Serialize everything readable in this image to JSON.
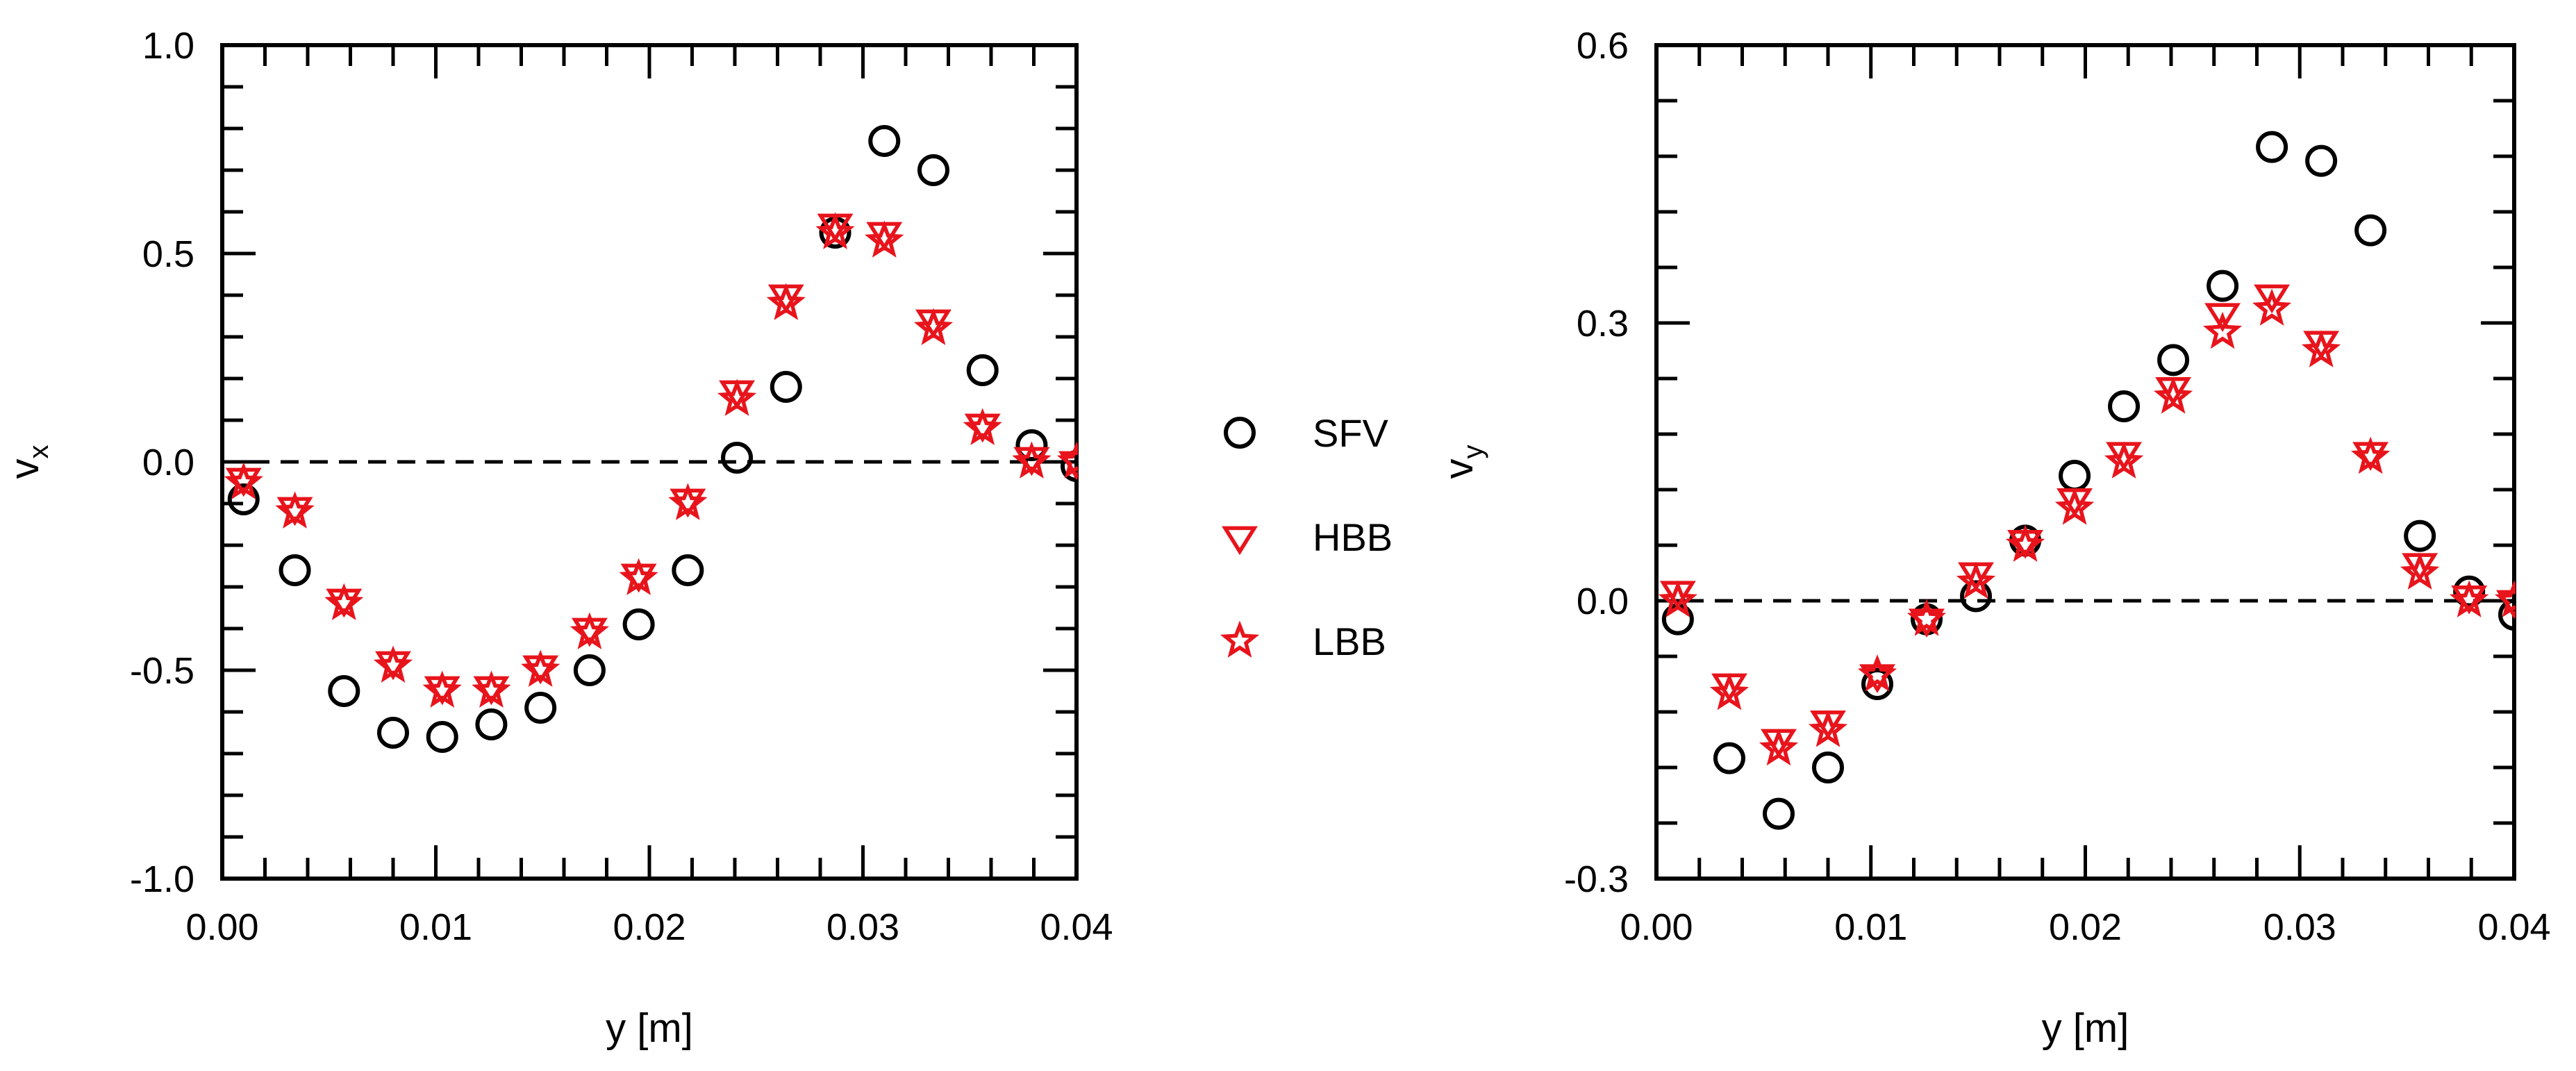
{
  "colors": {
    "sfv": "#000000",
    "hbb": "#e8141c",
    "lbb": "#e8141c",
    "axis": "#000000"
  },
  "legend": [
    {
      "key": "sfv",
      "label": "SFV",
      "marker": "circle"
    },
    {
      "key": "hbb",
      "label": "HBB",
      "marker": "triangle-down"
    },
    {
      "key": "lbb",
      "label": "LBB",
      "marker": "star"
    }
  ],
  "chart_data": [
    {
      "type": "scatter",
      "title": "",
      "xlabel": "y [m]",
      "ylabel_main": "v",
      "ylabel_sub": "x",
      "xlim": [
        0,
        0.04
      ],
      "ylim": [
        -1.0,
        1.0
      ],
      "xticks": [
        0.0,
        0.01,
        0.02,
        0.03,
        0.04
      ],
      "xtick_labels": [
        "0.00",
        "0.01",
        "0.02",
        "0.03",
        "0.04"
      ],
      "yticks": [
        -1.0,
        -0.5,
        0.0,
        0.5,
        1.0
      ],
      "ytick_labels": [
        "-1.0",
        "-0.5",
        "0.0",
        "0.5",
        "1.0"
      ],
      "zero_line": true,
      "x": [
        0.001,
        0.0034,
        0.0057,
        0.008,
        0.0103,
        0.0126,
        0.0149,
        0.0172,
        0.0195,
        0.0218,
        0.0241,
        0.0264,
        0.0287,
        0.031,
        0.0333,
        0.0356,
        0.0379,
        0.04
      ],
      "series": [
        {
          "name": "SFV",
          "values": [
            -0.09,
            -0.26,
            -0.55,
            -0.65,
            -0.66,
            -0.63,
            -0.59,
            -0.5,
            -0.39,
            -0.26,
            0.01,
            0.18,
            0.55,
            0.77,
            0.7,
            0.22,
            0.04,
            -0.01
          ]
        },
        {
          "name": "HBB",
          "values": [
            -0.04,
            -0.11,
            -0.33,
            -0.48,
            -0.54,
            -0.54,
            -0.49,
            -0.4,
            -0.27,
            -0.09,
            0.17,
            0.4,
            0.57,
            0.55,
            0.34,
            0.09,
            0.01,
            0.0
          ]
        },
        {
          "name": "LBB",
          "values": [
            -0.05,
            -0.12,
            -0.34,
            -0.49,
            -0.55,
            -0.55,
            -0.5,
            -0.41,
            -0.28,
            -0.1,
            0.15,
            0.38,
            0.55,
            0.53,
            0.32,
            0.08,
            0.0,
            0.0
          ]
        }
      ]
    },
    {
      "type": "scatter",
      "title": "",
      "xlabel": "y [m]",
      "ylabel_main": "v",
      "ylabel_sub": "y",
      "xlim": [
        0,
        0.04
      ],
      "ylim": [
        -0.3,
        0.6
      ],
      "xticks": [
        0.0,
        0.01,
        0.02,
        0.03,
        0.04
      ],
      "xtick_labels": [
        "0.00",
        "0.01",
        "0.02",
        "0.03",
        "0.04"
      ],
      "yticks": [
        -0.3,
        0.0,
        0.3,
        0.6
      ],
      "ytick_labels": [
        "-0.3",
        "0.0",
        "0.3",
        "0.6"
      ],
      "zero_line": true,
      "x": [
        0.001,
        0.0034,
        0.0057,
        0.008,
        0.0103,
        0.0126,
        0.0149,
        0.0172,
        0.0195,
        0.0218,
        0.0241,
        0.0264,
        0.0287,
        0.031,
        0.0333,
        0.0356,
        0.0379,
        0.04
      ],
      "series": [
        {
          "name": "SFV",
          "values": [
            -0.02,
            -0.17,
            -0.23,
            -0.18,
            -0.09,
            -0.02,
            0.005,
            0.065,
            0.135,
            0.21,
            0.26,
            0.34,
            0.49,
            0.475,
            0.4,
            0.07,
            0.01,
            -0.015
          ]
        },
        {
          "name": "HBB",
          "values": [
            0.01,
            -0.09,
            -0.15,
            -0.13,
            -0.08,
            -0.02,
            0.03,
            0.065,
            0.11,
            0.16,
            0.23,
            0.31,
            0.33,
            0.28,
            0.16,
            0.04,
            0.005,
            0.0
          ]
        },
        {
          "name": "LBB",
          "values": [
            0.0,
            -0.1,
            -0.16,
            -0.14,
            -0.08,
            -0.02,
            0.02,
            0.06,
            0.1,
            0.15,
            0.22,
            0.29,
            0.315,
            0.27,
            0.155,
            0.03,
            0.0,
            0.0
          ]
        }
      ]
    }
  ]
}
